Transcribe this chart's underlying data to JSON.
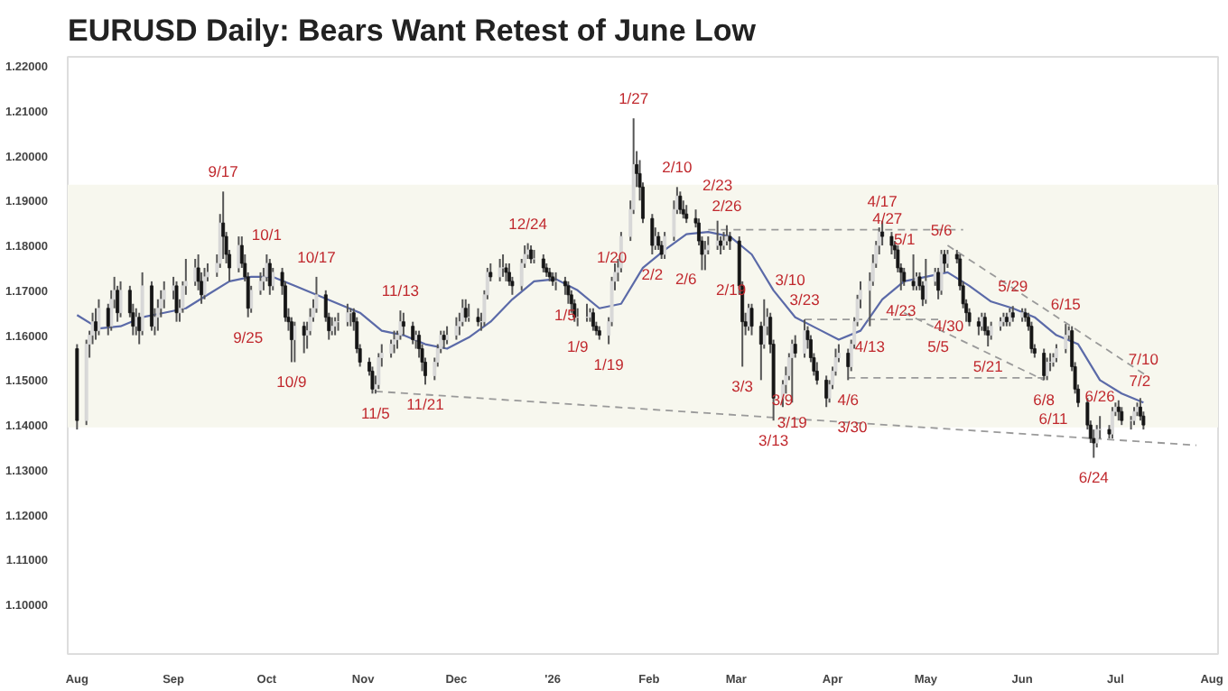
{
  "chart_data": {
    "type": "candlestick",
    "title": "EURUSD Daily: Bears Want Retest of June Low",
    "xlim": [
      "2025-07-29",
      "2026-08-03"
    ],
    "ylim": [
      1.089,
      1.222
    ],
    "xticks": [
      {
        "value": "2025-08-01",
        "label": "Aug"
      },
      {
        "value": "2025-09-01",
        "label": "Sep"
      },
      {
        "value": "2025-10-01",
        "label": "Oct"
      },
      {
        "value": "2025-11-01",
        "label": "Nov"
      },
      {
        "value": "2025-12-01",
        "label": "Dec"
      },
      {
        "value": "2026-01-01",
        "label": "'26"
      },
      {
        "value": "2026-02-01",
        "label": "Feb"
      },
      {
        "value": "2026-03-01",
        "label": "Mar"
      },
      {
        "value": "2026-04-01",
        "label": "Apr"
      },
      {
        "value": "2026-05-01",
        "label": "May"
      },
      {
        "value": "2026-06-01",
        "label": "Jun"
      },
      {
        "value": "2026-07-01",
        "label": "Jul"
      },
      {
        "value": "2026-08-01",
        "label": "Aug"
      }
    ],
    "yticks": [
      {
        "value": 1.1,
        "label": "1.10000"
      },
      {
        "value": 1.11,
        "label": "1.11000"
      },
      {
        "value": 1.12,
        "label": "1.12000"
      },
      {
        "value": 1.13,
        "label": "1.13000"
      },
      {
        "value": 1.14,
        "label": "1.14000"
      },
      {
        "value": 1.15,
        "label": "1.15000"
      },
      {
        "value": 1.16,
        "label": "1.16000"
      },
      {
        "value": 1.17,
        "label": "1.17000"
      },
      {
        "value": 1.18,
        "label": "1.18000"
      },
      {
        "value": 1.19,
        "label": "1.19000"
      },
      {
        "value": 1.2,
        "label": "1.20000"
      },
      {
        "value": 1.21,
        "label": "1.21000"
      },
      {
        "value": 1.22,
        "label": "1.22000"
      }
    ],
    "grid": false,
    "bands": [
      {
        "axis": "y",
        "from": 1.1395,
        "to": 1.1935,
        "label": null,
        "color": "#f7f7ee"
      }
    ],
    "x": [
      "2025-08-01",
      "2025-08-04",
      "2025-08-05",
      "2025-08-06",
      "2025-08-07",
      "2025-08-08",
      "2025-08-11",
      "2025-08-12",
      "2025-08-13",
      "2025-08-14",
      "2025-08-15",
      "2025-08-18",
      "2025-08-19",
      "2025-08-20",
      "2025-08-21",
      "2025-08-22",
      "2025-08-25",
      "2025-08-26",
      "2025-08-27",
      "2025-08-28",
      "2025-08-29",
      "2025-09-01",
      "2025-09-02",
      "2025-09-03",
      "2025-09-04",
      "2025-09-05",
      "2025-09-08",
      "2025-09-09",
      "2025-09-10",
      "2025-09-11",
      "2025-09-12",
      "2025-09-15",
      "2025-09-16",
      "2025-09-17",
      "2025-09-18",
      "2025-09-19",
      "2025-09-22",
      "2025-09-23",
      "2025-09-24",
      "2025-09-25",
      "2025-09-26",
      "2025-09-29",
      "2025-09-30",
      "2025-10-01",
      "2025-10-02",
      "2025-10-03",
      "2025-10-06",
      "2025-10-07",
      "2025-10-08",
      "2025-10-09",
      "2025-10-10",
      "2025-10-13",
      "2025-10-14",
      "2025-10-15",
      "2025-10-16",
      "2025-10-17",
      "2025-10-20",
      "2025-10-21",
      "2025-10-22",
      "2025-10-23",
      "2025-10-24",
      "2025-10-27",
      "2025-10-28",
      "2025-10-29",
      "2025-10-30",
      "2025-10-31",
      "2025-11-03",
      "2025-11-04",
      "2025-11-05",
      "2025-11-06",
      "2025-11-07",
      "2025-11-10",
      "2025-11-11",
      "2025-11-12",
      "2025-11-13",
      "2025-11-14",
      "2025-11-17",
      "2025-11-18",
      "2025-11-19",
      "2025-11-20",
      "2025-11-21",
      "2025-11-24",
      "2025-11-25",
      "2025-11-26",
      "2025-11-27",
      "2025-11-28",
      "2025-12-01",
      "2025-12-02",
      "2025-12-03",
      "2025-12-04",
      "2025-12-05",
      "2025-12-08",
      "2025-12-09",
      "2025-12-10",
      "2025-12-11",
      "2025-12-12",
      "2025-12-15",
      "2025-12-16",
      "2025-12-17",
      "2025-12-18",
      "2025-12-19",
      "2025-12-22",
      "2025-12-23",
      "2025-12-24",
      "2025-12-25",
      "2025-12-26",
      "2025-12-29",
      "2025-12-30",
      "2025-12-31",
      "2026-01-01",
      "2026-01-02",
      "2026-01-05",
      "2026-01-06",
      "2026-01-07",
      "2026-01-08",
      "2026-01-09",
      "2026-01-12",
      "2026-01-13",
      "2026-01-14",
      "2026-01-15",
      "2026-01-16",
      "2026-01-19",
      "2026-01-20",
      "2026-01-21",
      "2026-01-22",
      "2026-01-23",
      "2026-01-26",
      "2026-01-27",
      "2026-01-28",
      "2026-01-29",
      "2026-01-30",
      "2026-02-02",
      "2026-02-03",
      "2026-02-04",
      "2026-02-05",
      "2026-02-06",
      "2026-02-09",
      "2026-02-10",
      "2026-02-11",
      "2026-02-12",
      "2026-02-13",
      "2026-02-16",
      "2026-02-17",
      "2026-02-18",
      "2026-02-19",
      "2026-02-20",
      "2026-02-23",
      "2026-02-24",
      "2026-02-25",
      "2026-02-26",
      "2026-02-27",
      "2026-03-02",
      "2026-03-03",
      "2026-03-04",
      "2026-03-05",
      "2026-03-06",
      "2026-03-09",
      "2026-03-10",
      "2026-03-11",
      "2026-03-12",
      "2026-03-13",
      "2026-03-16",
      "2026-03-17",
      "2026-03-18",
      "2026-03-19",
      "2026-03-20",
      "2026-03-23",
      "2026-03-24",
      "2026-03-25",
      "2026-03-26",
      "2026-03-27",
      "2026-03-30",
      "2026-03-31",
      "2026-04-01",
      "2026-04-02",
      "2026-04-03",
      "2026-04-06",
      "2026-04-07",
      "2026-04-08",
      "2026-04-09",
      "2026-04-10",
      "2026-04-13",
      "2026-04-14",
      "2026-04-15",
      "2026-04-16",
      "2026-04-17",
      "2026-04-20",
      "2026-04-21",
      "2026-04-22",
      "2026-04-23",
      "2026-04-24",
      "2026-04-27",
      "2026-04-28",
      "2026-04-29",
      "2026-04-30",
      "2026-05-01",
      "2026-05-04",
      "2026-05-05",
      "2026-05-06",
      "2026-05-07",
      "2026-05-08",
      "2026-05-11",
      "2026-05-12",
      "2026-05-13",
      "2026-05-14",
      "2026-05-15",
      "2026-05-18",
      "2026-05-19",
      "2026-05-20",
      "2026-05-21",
      "2026-05-22",
      "2026-05-25",
      "2026-05-26",
      "2026-05-27",
      "2026-05-28",
      "2026-05-29",
      "2026-06-01",
      "2026-06-02",
      "2026-06-03",
      "2026-06-04",
      "2026-06-05",
      "2026-06-08",
      "2026-06-09",
      "2026-06-10",
      "2026-06-11",
      "2026-06-12",
      "2026-06-15",
      "2026-06-16",
      "2026-06-17",
      "2026-06-18",
      "2026-06-19",
      "2026-06-22",
      "2026-06-23",
      "2026-06-24",
      "2026-06-25",
      "2026-06-26",
      "2026-06-29",
      "2026-06-30",
      "2026-07-01",
      "2026-07-02",
      "2026-07-03",
      "2026-07-06",
      "2026-07-07",
      "2026-07-08",
      "2026-07-09",
      "2026-07-10"
    ],
    "ohlc": [
      [
        1.157,
        1.158,
        1.139,
        1.141
      ],
      [
        1.141,
        1.159,
        1.14,
        1.158
      ],
      [
        1.158,
        1.161,
        1.155,
        1.16
      ],
      [
        1.16,
        1.165,
        1.158,
        1.163
      ],
      [
        1.163,
        1.166,
        1.159,
        1.161
      ],
      [
        1.161,
        1.168,
        1.16,
        1.166
      ],
      [
        1.166,
        1.167,
        1.16,
        1.162
      ],
      [
        1.162,
        1.17,
        1.161,
        1.168
      ],
      [
        1.168,
        1.173,
        1.166,
        1.17
      ],
      [
        1.17,
        1.171,
        1.163,
        1.165
      ],
      [
        1.165,
        1.172,
        1.164,
        1.17
      ],
      [
        1.17,
        1.171,
        1.164,
        1.165
      ],
      [
        1.165,
        1.167,
        1.16,
        1.162
      ],
      [
        1.162,
        1.166,
        1.16,
        1.164
      ],
      [
        1.164,
        1.165,
        1.158,
        1.161
      ],
      [
        1.161,
        1.174,
        1.16,
        1.171
      ],
      [
        1.171,
        1.172,
        1.161,
        1.162
      ],
      [
        1.162,
        1.166,
        1.16,
        1.164
      ],
      [
        1.164,
        1.168,
        1.161,
        1.166
      ],
      [
        1.166,
        1.17,
        1.164,
        1.168
      ],
      [
        1.168,
        1.172,
        1.166,
        1.17
      ],
      [
        1.17,
        1.173,
        1.168,
        1.171
      ],
      [
        1.171,
        1.172,
        1.163,
        1.165
      ],
      [
        1.165,
        1.168,
        1.163,
        1.166
      ],
      [
        1.166,
        1.172,
        1.165,
        1.171
      ],
      [
        1.171,
        1.177,
        1.169,
        1.172
      ],
      [
        1.172,
        1.177,
        1.171,
        1.175
      ],
      [
        1.175,
        1.178,
        1.17,
        1.172
      ],
      [
        1.172,
        1.174,
        1.167,
        1.169
      ],
      [
        1.169,
        1.175,
        1.168,
        1.173
      ],
      [
        1.173,
        1.176,
        1.172,
        1.174
      ],
      [
        1.174,
        1.178,
        1.173,
        1.176
      ],
      [
        1.176,
        1.187,
        1.175,
        1.185
      ],
      [
        1.185,
        1.192,
        1.177,
        1.182
      ],
      [
        1.182,
        1.183,
        1.176,
        1.178
      ],
      [
        1.178,
        1.179,
        1.172,
        1.175
      ],
      [
        1.175,
        1.182,
        1.174,
        1.18
      ],
      [
        1.18,
        1.182,
        1.175,
        1.176
      ],
      [
        1.176,
        1.178,
        1.172,
        1.173
      ],
      [
        1.173,
        1.174,
        1.164,
        1.166
      ],
      [
        1.166,
        1.171,
        1.165,
        1.17
      ],
      [
        1.17,
        1.174,
        1.169,
        1.172
      ],
      [
        1.172,
        1.175,
        1.17,
        1.173
      ],
      [
        1.173,
        1.178,
        1.172,
        1.176
      ],
      [
        1.176,
        1.177,
        1.169,
        1.171
      ],
      [
        1.171,
        1.175,
        1.17,
        1.174
      ],
      [
        1.174,
        1.175,
        1.169,
        1.171
      ],
      [
        1.171,
        1.172,
        1.163,
        1.164
      ],
      [
        1.164,
        1.166,
        1.161,
        1.163
      ],
      [
        1.163,
        1.164,
        1.154,
        1.159
      ],
      [
        1.159,
        1.163,
        1.154,
        1.162
      ],
      [
        1.162,
        1.163,
        1.156,
        1.16
      ],
      [
        1.16,
        1.163,
        1.157,
        1.161
      ],
      [
        1.161,
        1.166,
        1.16,
        1.164
      ],
      [
        1.164,
        1.168,
        1.163,
        1.166
      ],
      [
        1.166,
        1.173,
        1.165,
        1.169
      ],
      [
        1.169,
        1.17,
        1.163,
        1.164
      ],
      [
        1.164,
        1.165,
        1.159,
        1.161
      ],
      [
        1.161,
        1.164,
        1.16,
        1.162
      ],
      [
        1.162,
        1.164,
        1.16,
        1.163
      ],
      [
        1.163,
        1.165,
        1.161,
        1.163
      ],
      [
        1.163,
        1.167,
        1.162,
        1.165
      ],
      [
        1.165,
        1.166,
        1.162,
        1.165
      ],
      [
        1.165,
        1.166,
        1.161,
        1.163
      ],
      [
        1.163,
        1.164,
        1.156,
        1.157
      ],
      [
        1.157,
        1.158,
        1.153,
        1.154
      ],
      [
        1.154,
        1.155,
        1.151,
        1.152
      ],
      [
        1.152,
        1.153,
        1.147,
        1.148
      ],
      [
        1.148,
        1.151,
        1.147,
        1.149
      ],
      [
        1.149,
        1.156,
        1.148,
        1.155
      ],
      [
        1.155,
        1.158,
        1.153,
        1.156
      ],
      [
        1.156,
        1.159,
        1.155,
        1.158
      ],
      [
        1.158,
        1.161,
        1.156,
        1.159
      ],
      [
        1.159,
        1.161,
        1.157,
        1.16
      ],
      [
        1.16,
        1.1655,
        1.159,
        1.163
      ],
      [
        1.163,
        1.165,
        1.16,
        1.162
      ],
      [
        1.162,
        1.163,
        1.158,
        1.159
      ],
      [
        1.159,
        1.161,
        1.157,
        1.16
      ],
      [
        1.16,
        1.161,
        1.155,
        1.157
      ],
      [
        1.157,
        1.158,
        1.152,
        1.154
      ],
      [
        1.154,
        1.155,
        1.149,
        1.151
      ],
      [
        1.151,
        1.155,
        1.15,
        1.154
      ],
      [
        1.154,
        1.158,
        1.153,
        1.157
      ],
      [
        1.157,
        1.161,
        1.156,
        1.16
      ],
      [
        1.16,
        1.161,
        1.157,
        1.159
      ],
      [
        1.159,
        1.162,
        1.158,
        1.16
      ],
      [
        1.16,
        1.164,
        1.159,
        1.162
      ],
      [
        1.162,
        1.165,
        1.16,
        1.163
      ],
      [
        1.163,
        1.168,
        1.162,
        1.166
      ],
      [
        1.166,
        1.168,
        1.163,
        1.164
      ],
      [
        1.164,
        1.167,
        1.163,
        1.164
      ],
      [
        1.164,
        1.166,
        1.162,
        1.163
      ],
      [
        1.163,
        1.165,
        1.161,
        1.163
      ],
      [
        1.163,
        1.17,
        1.162,
        1.169
      ],
      [
        1.169,
        1.175,
        1.168,
        1.174
      ],
      [
        1.174,
        1.176,
        1.172,
        1.173
      ],
      [
        1.173,
        1.177,
        1.172,
        1.175
      ],
      [
        1.175,
        1.178,
        1.173,
        1.175
      ],
      [
        1.175,
        1.176,
        1.172,
        1.174
      ],
      [
        1.174,
        1.176,
        1.171,
        1.172
      ],
      [
        1.172,
        1.173,
        1.169,
        1.171
      ],
      [
        1.171,
        1.177,
        1.17,
        1.176
      ],
      [
        1.176,
        1.18,
        1.175,
        1.178
      ],
      [
        1.178,
        1.1805,
        1.177,
        1.179
      ],
      [
        1.179,
        1.18,
        1.176,
        1.177
      ],
      [
        1.177,
        1.179,
        1.176,
        1.177
      ],
      [
        1.177,
        1.178,
        1.174,
        1.175
      ],
      [
        1.175,
        1.176,
        1.173,
        1.174
      ],
      [
        1.174,
        1.175,
        1.172,
        1.173
      ],
      [
        1.173,
        1.174,
        1.171,
        1.172
      ],
      [
        1.172,
        1.174,
        1.17,
        1.172
      ],
      [
        1.172,
        1.173,
        1.169,
        1.171
      ],
      [
        1.171,
        1.172,
        1.167,
        1.169
      ],
      [
        1.169,
        1.17,
        1.165,
        1.167
      ],
      [
        1.167,
        1.168,
        1.163,
        1.164
      ],
      [
        1.164,
        1.166,
        1.162,
        1.164
      ],
      [
        1.164,
        1.167,
        1.163,
        1.164
      ],
      [
        1.164,
        1.166,
        1.163,
        1.165
      ],
      [
        1.165,
        1.166,
        1.161,
        1.162
      ],
      [
        1.162,
        1.163,
        1.16,
        1.161
      ],
      [
        1.161,
        1.162,
        1.159,
        1.16
      ],
      [
        1.16,
        1.164,
        1.158,
        1.163
      ],
      [
        1.163,
        1.173,
        1.162,
        1.172
      ],
      [
        1.172,
        1.176,
        1.17,
        1.174
      ],
      [
        1.174,
        1.177,
        1.172,
        1.175
      ],
      [
        1.175,
        1.183,
        1.174,
        1.182
      ],
      [
        1.182,
        1.19,
        1.181,
        1.188
      ],
      [
        1.188,
        1.2083,
        1.187,
        1.198
      ],
      [
        1.198,
        1.201,
        1.193,
        1.196
      ],
      [
        1.196,
        1.199,
        1.19,
        1.193
      ],
      [
        1.193,
        1.194,
        1.185,
        1.186
      ],
      [
        1.186,
        1.187,
        1.178,
        1.18
      ],
      [
        1.18,
        1.184,
        1.179,
        1.182
      ],
      [
        1.182,
        1.183,
        1.179,
        1.18
      ],
      [
        1.18,
        1.181,
        1.177,
        1.178
      ],
      [
        1.178,
        1.183,
        1.177,
        1.182
      ],
      [
        1.182,
        1.19,
        1.181,
        1.188
      ],
      [
        1.188,
        1.193,
        1.187,
        1.191
      ],
      [
        1.191,
        1.192,
        1.187,
        1.188
      ],
      [
        1.188,
        1.19,
        1.186,
        1.187
      ],
      [
        1.187,
        1.189,
        1.185,
        1.186
      ],
      [
        1.186,
        1.188,
        1.184,
        1.185
      ],
      [
        1.185,
        1.186,
        1.18,
        1.181
      ],
      [
        1.181,
        1.182,
        1.1745,
        1.178
      ],
      [
        1.178,
        1.181,
        1.1745,
        1.179
      ],
      [
        1.179,
        1.182,
        1.178,
        1.18
      ],
      [
        1.18,
        1.1855,
        1.179,
        1.181
      ],
      [
        1.181,
        1.182,
        1.178,
        1.18
      ],
      [
        1.18,
        1.183,
        1.179,
        1.181
      ],
      [
        1.181,
        1.1845,
        1.18,
        1.182
      ],
      [
        1.182,
        1.183,
        1.179,
        1.181
      ],
      [
        1.181,
        1.182,
        1.169,
        1.171
      ],
      [
        1.171,
        1.172,
        1.153,
        1.163
      ],
      [
        1.163,
        1.165,
        1.16,
        1.162
      ],
      [
        1.162,
        1.167,
        1.161,
        1.166
      ],
      [
        1.166,
        1.167,
        1.16,
        1.162
      ],
      [
        1.162,
        1.163,
        1.15,
        1.158
      ],
      [
        1.158,
        1.168,
        1.157,
        1.162
      ],
      [
        1.162,
        1.166,
        1.16,
        1.164
      ],
      [
        1.164,
        1.165,
        1.156,
        1.158
      ],
      [
        1.158,
        1.159,
        1.141,
        1.146
      ],
      [
        1.146,
        1.15,
        1.144,
        1.149
      ],
      [
        1.149,
        1.153,
        1.147,
        1.151
      ],
      [
        1.151,
        1.156,
        1.15,
        1.155
      ],
      [
        1.155,
        1.159,
        1.145,
        1.158
      ],
      [
        1.158,
        1.16,
        1.155,
        1.156
      ],
      [
        1.156,
        1.1635,
        1.155,
        1.161
      ],
      [
        1.161,
        1.162,
        1.157,
        1.159
      ],
      [
        1.159,
        1.16,
        1.154,
        1.155
      ],
      [
        1.155,
        1.156,
        1.151,
        1.152
      ],
      [
        1.152,
        1.154,
        1.149,
        1.15
      ],
      [
        1.15,
        1.151,
        1.144,
        1.146
      ],
      [
        1.146,
        1.15,
        1.145,
        1.149
      ],
      [
        1.149,
        1.153,
        1.148,
        1.152
      ],
      [
        1.152,
        1.157,
        1.151,
        1.155
      ],
      [
        1.155,
        1.158,
        1.154,
        1.156
      ],
      [
        1.156,
        1.157,
        1.15,
        1.153
      ],
      [
        1.153,
        1.159,
        1.152,
        1.158
      ],
      [
        1.158,
        1.164,
        1.157,
        1.163
      ],
      [
        1.163,
        1.169,
        1.162,
        1.168
      ],
      [
        1.168,
        1.172,
        1.166,
        1.17
      ],
      [
        1.17,
        1.174,
        1.162,
        1.172
      ],
      [
        1.172,
        1.178,
        1.171,
        1.176
      ],
      [
        1.176,
        1.181,
        1.175,
        1.18
      ],
      [
        1.18,
        1.184,
        1.178,
        1.183
      ],
      [
        1.183,
        1.1855,
        1.18,
        1.182
      ],
      [
        1.182,
        1.183,
        1.178,
        1.18
      ],
      [
        1.18,
        1.181,
        1.177,
        1.179
      ],
      [
        1.179,
        1.18,
        1.174,
        1.175
      ],
      [
        1.175,
        1.176,
        1.17,
        1.174
      ],
      [
        1.174,
        1.175,
        1.171,
        1.172
      ],
      [
        1.172,
        1.178,
        1.17,
        1.171
      ],
      [
        1.171,
        1.174,
        1.17,
        1.173
      ],
      [
        1.173,
        1.174,
        1.17,
        1.171
      ],
      [
        1.171,
        1.172,
        1.1665,
        1.168
      ],
      [
        1.168,
        1.177,
        1.167,
        1.172
      ],
      [
        1.172,
        1.175,
        1.171,
        1.174
      ],
      [
        1.174,
        1.175,
        1.168,
        1.17
      ],
      [
        1.17,
        1.179,
        1.169,
        1.178
      ],
      [
        1.178,
        1.179,
        1.174,
        1.176
      ],
      [
        1.176,
        1.179,
        1.175,
        1.178
      ],
      [
        1.178,
        1.179,
        1.176,
        1.177
      ],
      [
        1.177,
        1.178,
        1.17,
        1.171
      ],
      [
        1.171,
        1.172,
        1.166,
        1.167
      ],
      [
        1.167,
        1.168,
        1.163,
        1.165
      ],
      [
        1.165,
        1.166,
        1.162,
        1.163
      ],
      [
        1.163,
        1.164,
        1.16,
        1.162
      ],
      [
        1.162,
        1.165,
        1.161,
        1.164
      ],
      [
        1.164,
        1.165,
        1.16,
        1.161
      ],
      [
        1.161,
        1.162,
        1.1575,
        1.16
      ],
      [
        1.16,
        1.163,
        1.159,
        1.162
      ],
      [
        1.162,
        1.164,
        1.161,
        1.163
      ],
      [
        1.163,
        1.165,
        1.162,
        1.164
      ],
      [
        1.164,
        1.165,
        1.162,
        1.163
      ],
      [
        1.163,
        1.166,
        1.162,
        1.165
      ],
      [
        1.165,
        1.1665,
        1.163,
        1.164
      ],
      [
        1.164,
        1.166,
        1.163,
        1.165
      ],
      [
        1.165,
        1.166,
        1.163,
        1.164
      ],
      [
        1.164,
        1.165,
        1.161,
        1.162
      ],
      [
        1.162,
        1.163,
        1.156,
        1.157
      ],
      [
        1.157,
        1.158,
        1.155,
        1.156
      ],
      [
        1.156,
        1.157,
        1.15,
        1.151
      ],
      [
        1.151,
        1.155,
        1.15,
        1.154
      ],
      [
        1.154,
        1.156,
        1.152,
        1.154
      ],
      [
        1.154,
        1.156,
        1.153,
        1.155
      ],
      [
        1.155,
        1.158,
        1.154,
        1.157
      ],
      [
        1.157,
        1.1625,
        1.156,
        1.16
      ],
      [
        1.16,
        1.162,
        1.159,
        1.161
      ],
      [
        1.161,
        1.162,
        1.152,
        1.153
      ],
      [
        1.153,
        1.154,
        1.147,
        1.148
      ],
      [
        1.148,
        1.149,
        1.144,
        1.145
      ],
      [
        1.145,
        1.146,
        1.139,
        1.14
      ],
      [
        1.14,
        1.141,
        1.136,
        1.137
      ],
      [
        1.137,
        1.139,
        1.1327,
        1.136
      ],
      [
        1.136,
        1.14,
        1.135,
        1.139
      ],
      [
        1.139,
        1.142,
        1.137,
        1.139
      ],
      [
        1.139,
        1.14,
        1.137,
        1.138
      ],
      [
        1.138,
        1.144,
        1.137,
        1.143
      ],
      [
        1.143,
        1.145,
        1.142,
        1.144
      ],
      [
        1.144,
        1.1455,
        1.141,
        1.143
      ],
      [
        1.143,
        1.144,
        1.14,
        1.141
      ],
      [
        1.141,
        1.142,
        1.139,
        1.141
      ],
      [
        1.141,
        1.144,
        1.14,
        1.143
      ],
      [
        1.143,
        1.145,
        1.142,
        1.144
      ],
      [
        1.144,
        1.146,
        1.141,
        1.142
      ],
      [
        1.142,
        1.143,
        1.139,
        1.14
      ]
    ],
    "series": [
      {
        "type": "line",
        "color": "#5b6aa8",
        "line_style": "solid",
        "x": [
          "2025-08-01",
          "2025-08-08",
          "2025-08-15",
          "2025-08-22",
          "2025-08-29",
          "2025-09-05",
          "2025-09-12",
          "2025-09-19",
          "2025-09-26",
          "2025-10-03",
          "2025-10-10",
          "2025-10-17",
          "2025-10-24",
          "2025-10-31",
          "2025-11-07",
          "2025-11-14",
          "2025-11-21",
          "2025-11-28",
          "2025-12-05",
          "2025-12-12",
          "2025-12-19",
          "2025-12-26",
          "2026-01-02",
          "2026-01-09",
          "2026-01-16",
          "2026-01-23",
          "2026-01-30",
          "2026-02-06",
          "2026-02-13",
          "2026-02-20",
          "2026-02-27",
          "2026-03-06",
          "2026-03-13",
          "2026-03-20",
          "2026-03-27",
          "2026-04-03",
          "2026-04-10",
          "2026-04-17",
          "2026-04-24",
          "2026-05-01",
          "2026-05-08",
          "2026-05-15",
          "2026-05-22",
          "2026-05-29",
          "2026-06-05",
          "2026-06-12",
          "2026-06-19",
          "2026-06-26",
          "2026-07-03",
          "2026-07-10"
        ],
        "values": [
          1.1645,
          1.1615,
          1.162,
          1.164,
          1.165,
          1.166,
          1.169,
          1.172,
          1.173,
          1.173,
          1.171,
          1.169,
          1.167,
          1.165,
          1.161,
          1.16,
          1.158,
          1.157,
          1.1595,
          1.163,
          1.168,
          1.172,
          1.1725,
          1.17,
          1.166,
          1.167,
          1.175,
          1.179,
          1.1825,
          1.183,
          1.182,
          1.178,
          1.17,
          1.164,
          1.1615,
          1.159,
          1.161,
          1.168,
          1.172,
          1.173,
          1.174,
          1.171,
          1.1675,
          1.166,
          1.164,
          1.16,
          1.158,
          1.15,
          1.147,
          1.145
        ]
      },
      {
        "type": "line",
        "color": "#9a9a9a",
        "line_style": "dashed",
        "x": [
          "2025-11-05",
          "2026-07-27"
        ],
        "values": [
          1.1475,
          1.1355
        ]
      },
      {
        "type": "line",
        "color": "#9a9a9a",
        "line_style": "dashed",
        "x": [
          "2026-02-20",
          "2026-05-13"
        ],
        "values": [
          1.1835,
          1.1835
        ]
      },
      {
        "type": "line",
        "color": "#9a9a9a",
        "line_style": "dashed",
        "x": [
          "2026-03-23",
          "2026-05-06"
        ],
        "values": [
          1.1635,
          1.1635
        ]
      },
      {
        "type": "line",
        "color": "#9a9a9a",
        "line_style": "dashed",
        "x": [
          "2026-04-06",
          "2026-06-09"
        ],
        "values": [
          1.1505,
          1.1505
        ]
      },
      {
        "type": "line",
        "color": "#9a9a9a",
        "line_style": "dashed",
        "x": [
          "2026-05-08",
          "2026-07-11"
        ],
        "values": [
          1.18,
          1.151
        ]
      },
      {
        "type": "line",
        "color": "#9a9a9a",
        "line_style": "dashed",
        "x": [
          "2026-04-24",
          "2026-06-08"
        ],
        "values": [
          1.165,
          1.15
        ]
      }
    ],
    "annotations": [
      {
        "text": "9/17",
        "x": "2025-09-17",
        "y": 1.192
      },
      {
        "text": "10/1",
        "x": "2025-10-01",
        "y": 1.178
      },
      {
        "text": "10/17",
        "x": "2025-10-17",
        "y": 1.173
      },
      {
        "text": "11/13",
        "x": "2025-11-13",
        "y": 1.1655
      },
      {
        "text": "9/25",
        "x": "2025-09-25",
        "y": 1.164
      },
      {
        "text": "10/9",
        "x": "2025-10-09",
        "y": 1.154
      },
      {
        "text": "11/5",
        "x": "2025-11-05",
        "y": 1.147
      },
      {
        "text": "11/21",
        "x": "2025-11-21",
        "y": 1.149
      },
      {
        "text": "12/24",
        "x": "2025-12-24",
        "y": 1.1805
      },
      {
        "text": "1/20",
        "x": "2026-01-20",
        "y": 1.173
      },
      {
        "text": "1/27",
        "x": "2026-01-27",
        "y": 1.2083
      },
      {
        "text": "2/10",
        "x": "2026-02-10",
        "y": 1.193
      },
      {
        "text": "2/26",
        "x": "2026-02-26",
        "y": 1.1845
      },
      {
        "text": "2/23",
        "x": "2026-02-23",
        "y": 1.1855
      },
      {
        "text": "2/2",
        "x": "2026-02-02",
        "y": 1.178
      },
      {
        "text": "2/6",
        "x": "2026-02-06",
        "y": 1.177
      },
      {
        "text": "2/19",
        "x": "2026-02-19",
        "y": 1.1745
      },
      {
        "text": "1/5",
        "x": "2026-01-05",
        "y": 1.169
      },
      {
        "text": "1/9",
        "x": "2026-01-09",
        "y": 1.162
      },
      {
        "text": "1/19",
        "x": "2026-01-19",
        "y": 1.158
      },
      {
        "text": "3/10",
        "x": "2026-03-10",
        "y": 1.168
      },
      {
        "text": "3/23",
        "x": "2026-03-23",
        "y": 1.1635
      },
      {
        "text": "3/3",
        "x": "2026-03-03",
        "y": 1.153
      },
      {
        "text": "3/9",
        "x": "2026-03-09",
        "y": 1.15
      },
      {
        "text": "3/19",
        "x": "2026-03-19",
        "y": 1.145
      },
      {
        "text": "3/13",
        "x": "2026-03-13",
        "y": 1.141
      },
      {
        "text": "3/30",
        "x": "2026-03-30",
        "y": 1.144
      },
      {
        "text": "4/6",
        "x": "2026-04-06",
        "y": 1.15
      },
      {
        "text": "4/17",
        "x": "2026-04-17",
        "y": 1.1855
      },
      {
        "text": "5/6",
        "x": "2026-05-06",
        "y": 1.179
      },
      {
        "text": "5/1",
        "x": "2026-05-01",
        "y": 1.177
      },
      {
        "text": "4/27",
        "x": "2026-04-27",
        "y": 1.178
      },
      {
        "text": "4/13",
        "x": "2026-04-13",
        "y": 1.162
      },
      {
        "text": "4/23",
        "x": "2026-04-23",
        "y": 1.17
      },
      {
        "text": "4/30",
        "x": "2026-04-30",
        "y": 1.1665
      },
      {
        "text": "5/5",
        "x": "2026-05-05",
        "y": 1.168
      },
      {
        "text": "5/21",
        "x": "2026-05-21",
        "y": 1.1575
      },
      {
        "text": "5/29",
        "x": "2026-05-29",
        "y": 1.1665
      },
      {
        "text": "6/15",
        "x": "2026-06-15",
        "y": 1.1625
      },
      {
        "text": "6/8",
        "x": "2026-06-08",
        "y": 1.15
      },
      {
        "text": "6/11",
        "x": "2026-06-11",
        "y": 1.153
      },
      {
        "text": "6/26",
        "x": "2026-06-26",
        "y": 1.142
      },
      {
        "text": "7/2",
        "x": "2026-07-02",
        "y": 1.1455
      },
      {
        "text": "7/10",
        "x": "2026-07-10",
        "y": 1.143
      },
      {
        "text": "6/24",
        "x": "2026-06-24",
        "y": 1.1327
      }
    ]
  }
}
